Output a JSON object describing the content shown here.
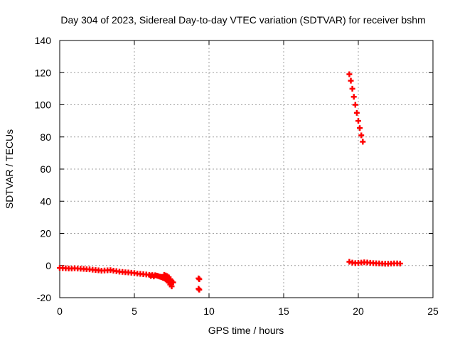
{
  "chart_data": {
    "type": "scatter",
    "title": "Day 304 of 2023, Sidereal Day-to-day VTEC variation (SDTVAR) for receiver bshm",
    "xlabel": "GPS time / hours",
    "ylabel": "SDTVAR / TECUs",
    "xlim": [
      0,
      25
    ],
    "ylim": [
      -20,
      140
    ],
    "xticks": [
      0,
      5,
      10,
      15,
      20,
      25
    ],
    "yticks": [
      -20,
      0,
      20,
      40,
      60,
      80,
      100,
      120,
      140
    ],
    "grid": true,
    "legend": "none",
    "series": [
      {
        "name": "SDTVAR",
        "color": "#ff0000",
        "marker": "plus",
        "points": [
          [
            0.0,
            -1.5
          ],
          [
            0.2,
            -1.6
          ],
          [
            0.4,
            -1.7
          ],
          [
            0.6,
            -1.8
          ],
          [
            0.8,
            -1.9
          ],
          [
            1.0,
            -1.7
          ],
          [
            1.2,
            -1.9
          ],
          [
            1.4,
            -2.0
          ],
          [
            1.6,
            -2.1
          ],
          [
            1.8,
            -2.3
          ],
          [
            2.0,
            -2.4
          ],
          [
            2.2,
            -2.6
          ],
          [
            2.4,
            -2.8
          ],
          [
            2.6,
            -3.0
          ],
          [
            2.8,
            -3.2
          ],
          [
            3.0,
            -3.1
          ],
          [
            3.2,
            -3.0
          ],
          [
            3.4,
            -2.9
          ],
          [
            3.6,
            -3.2
          ],
          [
            3.8,
            -3.5
          ],
          [
            4.0,
            -3.8
          ],
          [
            4.2,
            -4.0
          ],
          [
            4.4,
            -4.2
          ],
          [
            4.6,
            -4.3
          ],
          [
            4.8,
            -4.5
          ],
          [
            5.0,
            -4.7
          ],
          [
            5.2,
            -5.0
          ],
          [
            5.4,
            -5.2
          ],
          [
            5.6,
            -5.4
          ],
          [
            5.8,
            -5.6
          ],
          [
            6.0,
            -5.8
          ],
          [
            6.1,
            -6.5
          ],
          [
            6.2,
            -5.9
          ],
          [
            6.3,
            -6.8
          ],
          [
            6.4,
            -6.0
          ],
          [
            6.5,
            -6.3
          ],
          [
            6.6,
            -6.6
          ],
          [
            6.7,
            -6.9
          ],
          [
            6.8,
            -7.2
          ],
          [
            6.9,
            -7.6
          ],
          [
            7.0,
            -8.0
          ],
          [
            7.1,
            -8.6
          ],
          [
            7.2,
            -9.4
          ],
          [
            7.3,
            -10.5
          ],
          [
            7.4,
            -11.8
          ],
          [
            7.5,
            -13.0
          ],
          [
            7.0,
            -5.8
          ],
          [
            7.1,
            -6.2
          ],
          [
            7.2,
            -6.6
          ],
          [
            7.3,
            -7.3
          ],
          [
            7.4,
            -8.5
          ],
          [
            7.5,
            -9.8
          ],
          [
            7.6,
            -10.5
          ],
          [
            9.3,
            -8.0
          ],
          [
            9.35,
            -8.5
          ],
          [
            9.3,
            -14.5
          ],
          [
            9.35,
            -15.0
          ],
          [
            19.4,
            119.0
          ],
          [
            19.5,
            115.0
          ],
          [
            19.6,
            110.0
          ],
          [
            19.7,
            105.0
          ],
          [
            19.8,
            100.0
          ],
          [
            19.9,
            95.0
          ],
          [
            20.0,
            90.0
          ],
          [
            20.1,
            85.5
          ],
          [
            20.2,
            81.0
          ],
          [
            20.3,
            77.0
          ],
          [
            19.4,
            2.3
          ],
          [
            19.6,
            1.8
          ],
          [
            19.8,
            1.5
          ],
          [
            20.0,
            1.6
          ],
          [
            20.2,
            1.8
          ],
          [
            20.4,
            2.0
          ],
          [
            20.6,
            1.9
          ],
          [
            20.8,
            1.7
          ],
          [
            21.0,
            1.5
          ],
          [
            21.2,
            1.4
          ],
          [
            21.4,
            1.3
          ],
          [
            21.6,
            1.2
          ],
          [
            21.8,
            1.1
          ],
          [
            22.0,
            1.1
          ],
          [
            22.2,
            1.2
          ],
          [
            22.4,
            1.3
          ],
          [
            22.6,
            1.3
          ],
          [
            22.8,
            1.2
          ]
        ]
      }
    ]
  }
}
